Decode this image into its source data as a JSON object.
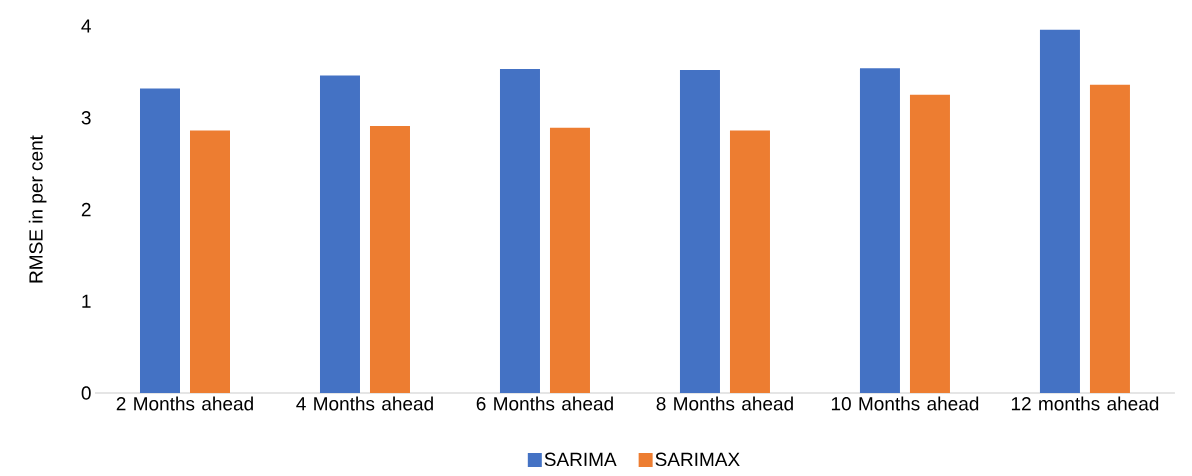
{
  "chart_data": {
    "type": "bar",
    "ylabel": "RMSE in per cent",
    "categories": [
      "2 Months ahead",
      "4 Months ahead",
      "6 Months ahead",
      "8 Months ahead",
      "10 Months ahead",
      "12 months ahead"
    ],
    "series": [
      {
        "name": "SARIMA",
        "color": "#4472c4",
        "values": [
          3.32,
          3.46,
          3.53,
          3.52,
          3.54,
          3.96
        ]
      },
      {
        "name": "SARIMAX",
        "color": "#ed7d31",
        "values": [
          2.86,
          2.91,
          2.89,
          2.86,
          3.25,
          3.36
        ]
      }
    ],
    "ylim": [
      0,
      4
    ],
    "yticks": [
      0,
      1,
      2,
      3,
      4
    ],
    "legend": "bottom"
  }
}
